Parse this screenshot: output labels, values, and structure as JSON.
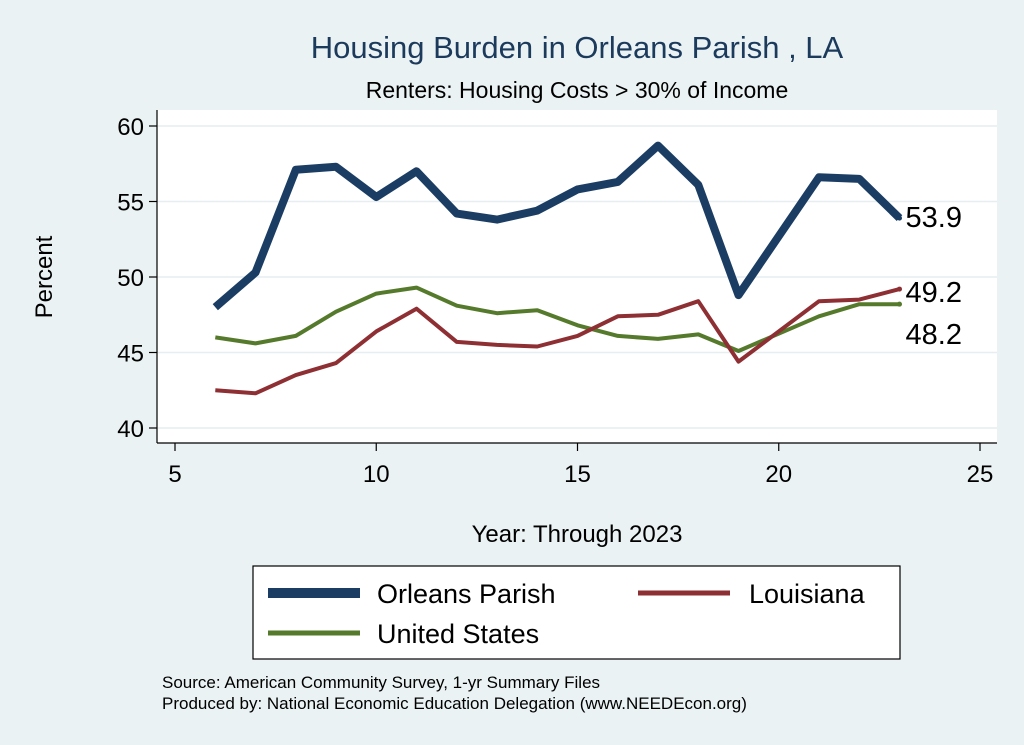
{
  "chart_data": {
    "type": "line",
    "title": "Housing Burden in Orleans Parish , LA",
    "subtitle": "Renters: Housing Costs > 30% of Income",
    "xlabel": "Year: Through 2023",
    "ylabel": "Percent",
    "xlim": [
      5,
      25
    ],
    "ylim": [
      40,
      60
    ],
    "xticks": [
      5,
      10,
      15,
      20,
      25
    ],
    "yticks": [
      40,
      45,
      50,
      55,
      60
    ],
    "grid": true,
    "legend_position": "bottom",
    "x": [
      6,
      7,
      8,
      9,
      10,
      11,
      12,
      13,
      14,
      15,
      16,
      17,
      18,
      19,
      21,
      22,
      23
    ],
    "series": [
      {
        "name": "Orleans Parish",
        "color": "#1b3d63",
        "width": "thick",
        "values": [
          48.0,
          50.3,
          57.1,
          57.3,
          55.3,
          57.0,
          54.2,
          53.8,
          54.4,
          55.8,
          56.3,
          58.7,
          56.1,
          48.8,
          56.6,
          56.5,
          53.9
        ],
        "end_label": "53.9"
      },
      {
        "name": "Louisiana",
        "color": "#8e2f33",
        "width": "thin",
        "values": [
          42.5,
          42.3,
          43.5,
          44.3,
          46.4,
          47.9,
          45.7,
          45.5,
          45.4,
          46.1,
          47.4,
          47.5,
          48.4,
          44.4,
          48.4,
          48.5,
          49.2
        ],
        "end_label": "49.2"
      },
      {
        "name": "United States",
        "color": "#557a2c",
        "width": "thin",
        "values": [
          46.0,
          45.6,
          46.1,
          47.7,
          48.9,
          49.3,
          48.1,
          47.6,
          47.8,
          46.8,
          46.1,
          45.9,
          46.2,
          45.1,
          47.4,
          48.2,
          48.2
        ],
        "end_label": "48.2"
      }
    ],
    "source_lines": [
      "Source: American Community Survey, 1-yr Summary Files",
      "Produced by: National Economic Education Delegation (www.NEEDEcon.org)"
    ]
  }
}
